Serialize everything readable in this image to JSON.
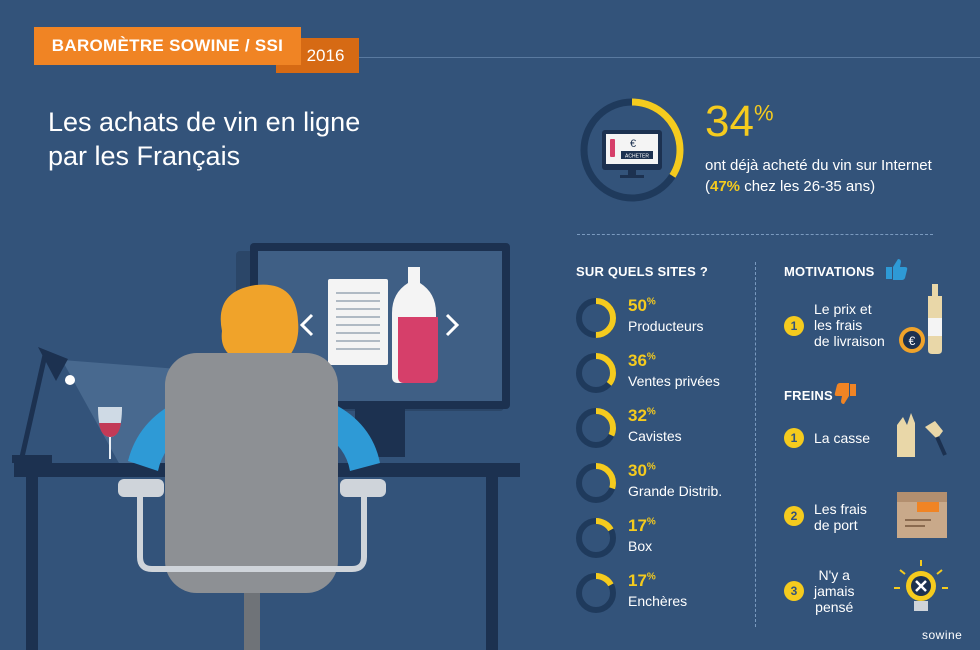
{
  "header": {
    "banner": "BAROMÈTRE SOWINE / SSI",
    "year": "2016"
  },
  "title": {
    "line1": "Les achats de vin en ligne",
    "line2": "par les Français"
  },
  "illustration": {
    "screen_button": "ACHETER",
    "currency_symbol": "€"
  },
  "stat": {
    "value": "34",
    "unit": "%",
    "description": "ont déjà acheté du vin sur Internet",
    "detail_open": "(",
    "detail_highlight": "47%",
    "detail_rest": " chez les 26-35 ans)"
  },
  "sites": {
    "title": "SUR QUELS SITES ?",
    "items": [
      {
        "pct": "50",
        "label": "Producteurs",
        "fraction": 0.5
      },
      {
        "pct": "36",
        "label": "Ventes privées",
        "fraction": 0.36
      },
      {
        "pct": "32",
        "label": "Cavistes",
        "fraction": 0.32
      },
      {
        "pct": "30",
        "label": "Grande Distrib.",
        "fraction": 0.3
      },
      {
        "pct": "17",
        "label": "Box",
        "fraction": 0.17
      },
      {
        "pct": "17",
        "label": "Enchères",
        "fraction": 0.17
      }
    ],
    "pct_sign": "%"
  },
  "motivations": {
    "title": "MOTIVATIONS",
    "items": [
      {
        "num": "1",
        "line1": "Le prix et",
        "line2": "les frais",
        "line3": "de livraison"
      }
    ]
  },
  "freins": {
    "title": "FREINS",
    "items": [
      {
        "num": "1",
        "line1": "La casse"
      },
      {
        "num": "2",
        "line1": "Les frais",
        "line2": "de port"
      },
      {
        "num": "3",
        "line1": "N'y a",
        "line2": "jamais",
        "line3": "pensé"
      }
    ]
  },
  "brand": "sowine",
  "colors": {
    "background": "#33537a",
    "orange": "#f08424",
    "yellow": "#f5cb1e",
    "ring_track": "#1f3a5c"
  }
}
